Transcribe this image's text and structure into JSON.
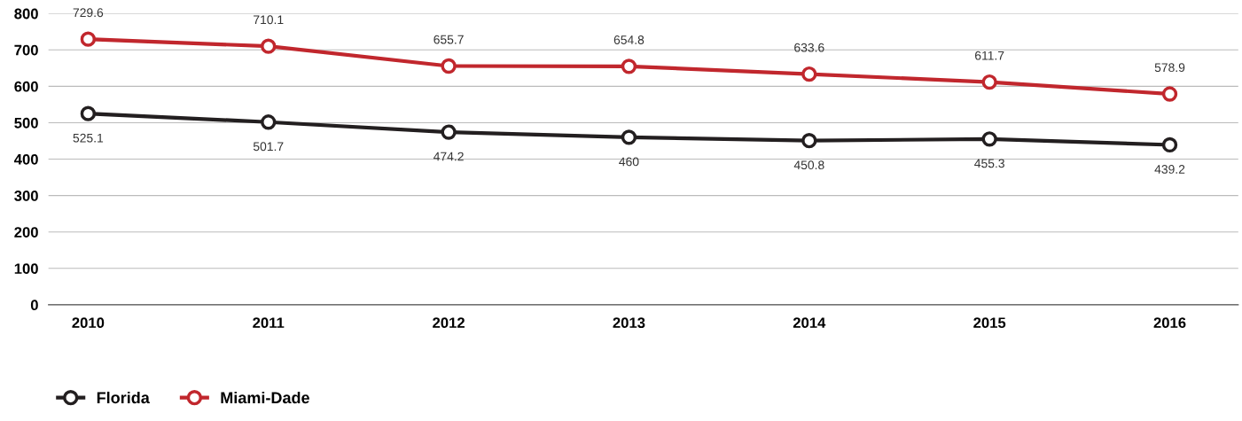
{
  "chart_data": {
    "type": "line",
    "categories": [
      "2010",
      "2011",
      "2012",
      "2013",
      "2014",
      "2015",
      "2016"
    ],
    "series": [
      {
        "name": "Florida",
        "color": "#231f20",
        "values": [
          525.1,
          501.7,
          474.2,
          460,
          450.8,
          455.3,
          439.2
        ]
      },
      {
        "name": "Miami-Dade",
        "color": "#c1272d",
        "values": [
          729.6,
          710.1,
          655.7,
          654.8,
          633.6,
          611.7,
          578.9
        ]
      }
    ],
    "ylim": [
      0,
      800
    ],
    "yticks": [
      0,
      100,
      200,
      300,
      400,
      500,
      600,
      700,
      800
    ],
    "grid": "y",
    "legend": "bottom left",
    "marker": "circle",
    "line_style": "solid",
    "data_labels": true
  }
}
